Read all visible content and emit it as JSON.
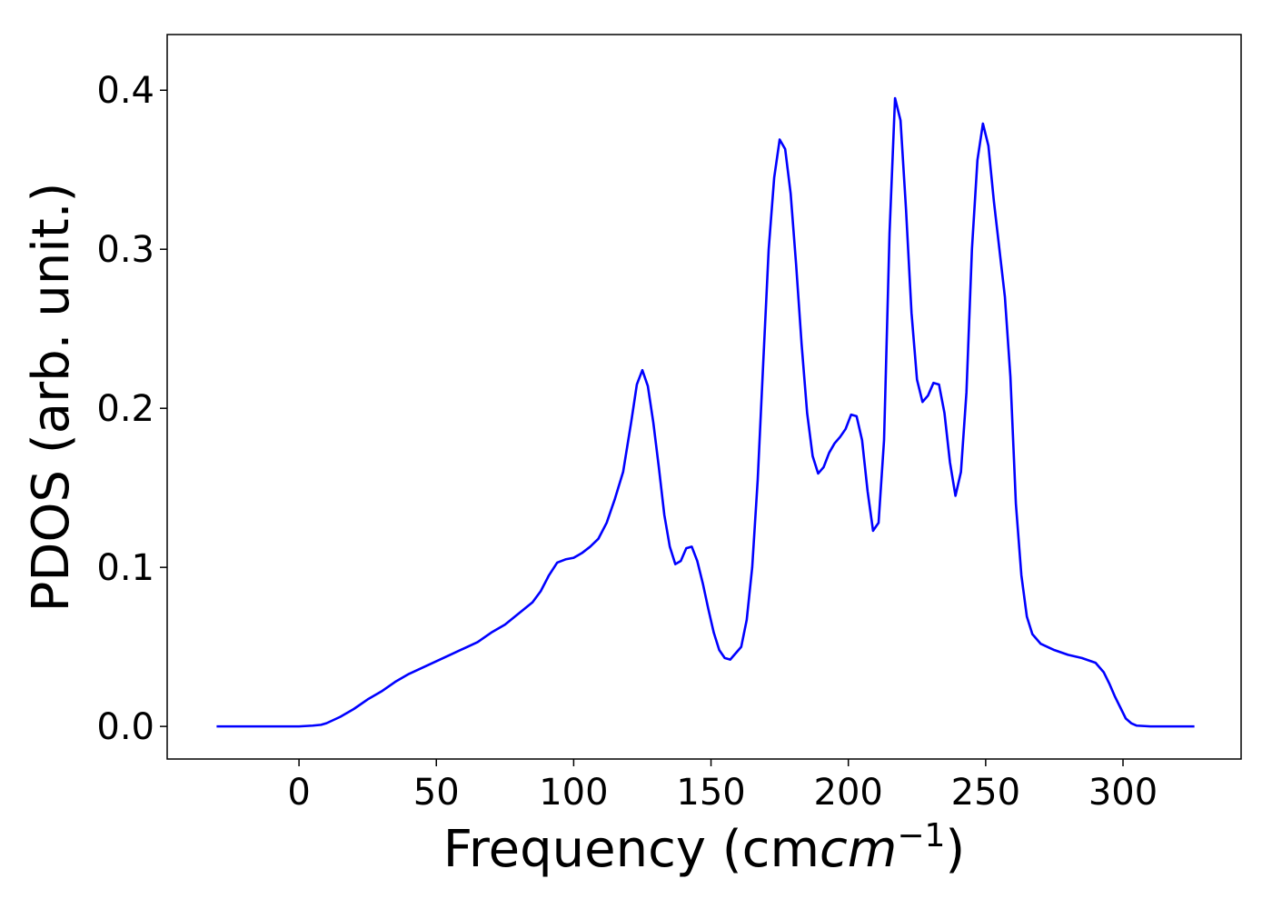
{
  "chart_data": {
    "type": "line",
    "title": "",
    "xlabel": "Frequency (cm",
    "xlabel_italic": "cm",
    "xlabel_sup": "−1",
    "xlabel_close": ")",
    "ylabel": "PDOS (arb. unit.)",
    "xlim": [
      -48,
      343
    ],
    "ylim": [
      -0.0205,
      0.435
    ],
    "xticks": [
      0,
      50,
      100,
      150,
      200,
      250,
      300
    ],
    "xtick_labels": [
      "0",
      "50",
      "100",
      "150",
      "200",
      "250",
      "300"
    ],
    "yticks": [
      0.0,
      0.1,
      0.2,
      0.3,
      0.4
    ],
    "ytick_labels": [
      "0.0",
      "0.1",
      "0.2",
      "0.3",
      "0.4"
    ],
    "grid": false,
    "series": [
      {
        "color": "#0000ff",
        "x": [
          -30,
          -20,
          -10,
          0,
          5,
          8,
          10,
          15,
          20,
          25,
          30,
          35,
          40,
          45,
          50,
          55,
          60,
          65,
          70,
          75,
          80,
          85,
          88,
          91,
          94,
          97,
          100,
          103,
          106,
          109,
          112,
          115,
          118,
          121,
          123,
          125,
          127,
          129,
          131,
          133,
          135,
          137,
          139,
          141,
          143,
          145,
          147,
          149,
          151,
          153,
          155,
          157,
          159,
          161,
          163,
          165,
          167,
          169,
          171,
          173,
          175,
          177,
          179,
          181,
          183,
          185,
          187,
          189,
          191,
          193,
          195,
          197,
          199,
          201,
          203,
          205,
          207,
          209,
          211,
          213,
          215,
          217,
          219,
          221,
          223,
          225,
          227,
          229,
          231,
          233,
          235,
          237,
          239,
          241,
          243,
          245,
          247,
          249,
          251,
          253,
          255,
          257,
          259,
          261,
          263,
          265,
          267,
          270,
          275,
          280,
          285,
          290,
          293,
          295,
          297,
          299,
          301,
          303,
          305,
          310,
          320,
          326
        ],
        "y": [
          0.0,
          0.0,
          0.0,
          0.0,
          0.0005,
          0.001,
          0.002,
          0.006,
          0.011,
          0.017,
          0.022,
          0.028,
          0.033,
          0.037,
          0.041,
          0.045,
          0.049,
          0.053,
          0.059,
          0.064,
          0.071,
          0.078,
          0.085,
          0.095,
          0.103,
          0.105,
          0.106,
          0.109,
          0.113,
          0.118,
          0.128,
          0.143,
          0.16,
          0.192,
          0.215,
          0.224,
          0.214,
          0.191,
          0.163,
          0.133,
          0.113,
          0.102,
          0.104,
          0.112,
          0.113,
          0.104,
          0.09,
          0.074,
          0.059,
          0.048,
          0.043,
          0.042,
          0.046,
          0.05,
          0.067,
          0.1,
          0.155,
          0.228,
          0.3,
          0.345,
          0.369,
          0.363,
          0.335,
          0.29,
          0.24,
          0.197,
          0.17,
          0.159,
          0.163,
          0.172,
          0.178,
          0.182,
          0.187,
          0.196,
          0.195,
          0.18,
          0.148,
          0.123,
          0.128,
          0.18,
          0.31,
          0.395,
          0.381,
          0.325,
          0.26,
          0.218,
          0.204,
          0.208,
          0.216,
          0.215,
          0.197,
          0.166,
          0.145,
          0.16,
          0.21,
          0.3,
          0.356,
          0.379,
          0.365,
          0.33,
          0.3,
          0.27,
          0.22,
          0.14,
          0.095,
          0.069,
          0.058,
          0.052,
          0.048,
          0.045,
          0.043,
          0.04,
          0.034,
          0.027,
          0.019,
          0.012,
          0.005,
          0.002,
          0.0005,
          0.0,
          0.0,
          0.0
        ]
      }
    ]
  }
}
